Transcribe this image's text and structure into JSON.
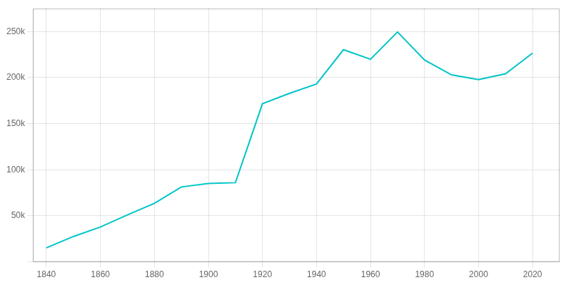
{
  "chart_data": {
    "type": "line",
    "x": [
      1840,
      1850,
      1860,
      1870,
      1880,
      1890,
      1900,
      1910,
      1920,
      1930,
      1940,
      1950,
      1960,
      1970,
      1980,
      1990,
      2000,
      2010,
      2020
    ],
    "values": [
      15274,
      27570,
      37910,
      51038,
      63600,
      81388,
      85050,
      86000,
      171667,
      183000,
      193042,
      230310,
      219958,
      249621,
      219214,
      203056,
      197790,
      204214,
      226610
    ],
    "color": "#00c5c8",
    "xlim": [
      1835,
      2030
    ],
    "xticks": [
      1840,
      1860,
      1880,
      1900,
      1920,
      1940,
      1960,
      1980,
      2000,
      2020
    ],
    "ylim": [
      0,
      275000
    ],
    "yticks": [
      {
        "value": 0,
        "label": ""
      },
      {
        "value": 50000,
        "label": "50k"
      },
      {
        "value": 100000,
        "label": "100k"
      },
      {
        "value": 150000,
        "label": "150k"
      },
      {
        "value": 200000,
        "label": "200k"
      },
      {
        "value": 250000,
        "label": "250k"
      }
    ],
    "grid": true
  }
}
